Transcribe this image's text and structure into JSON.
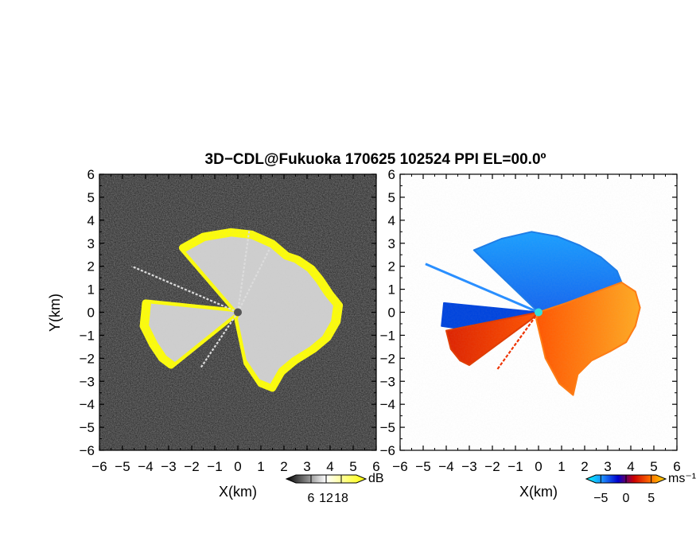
{
  "chart_data": [
    {
      "type": "heatmap",
      "panel": "left",
      "title": "3D−CDL@Fukuoka 170625 102524 PPI EL=00.0º",
      "xlabel": "X(km)",
      "ylabel": "Y(km)",
      "xlim": [
        -6,
        6
      ],
      "ylim": [
        -6,
        6
      ],
      "xticks": [
        "−6",
        "−5",
        "−4",
        "−3",
        "−2",
        "−1",
        "0",
        "1",
        "2",
        "3",
        "4",
        "5",
        "6"
      ],
      "yticks": [
        "6",
        "5",
        "4",
        "3",
        "2",
        "1",
        "0",
        "−1",
        "−2",
        "−3",
        "−4",
        "−5",
        "−6"
      ],
      "grid": false,
      "colorbar": {
        "label": "dB",
        "ticks": [
          "6",
          "12",
          "18"
        ],
        "values": [
          6,
          12,
          18
        ],
        "range": [
          0,
          24
        ],
        "colors": [
          "#000000",
          "#ffffff",
          "#ffff00"
        ]
      },
      "background_color": "#2e2e2e",
      "fill_colors": {
        "echo": "#cfcfcf",
        "edge": "#ffff00",
        "center": "#555555"
      },
      "echo_region": {
        "description_units": "km",
        "center": [
          0,
          0
        ],
        "sector_outline": [
          [
            0.1,
            0.0
          ],
          [
            0.6,
            2.5
          ],
          [
            1.0,
            2.7
          ],
          [
            1.4,
            2.6
          ],
          [
            2.0,
            2.5
          ],
          [
            2.6,
            2.3
          ],
          [
            3.2,
            1.9
          ],
          [
            3.6,
            1.4
          ],
          [
            4.0,
            0.8
          ],
          [
            4.4,
            0.3
          ],
          [
            4.3,
            -0.4
          ],
          [
            3.9,
            -1.1
          ],
          [
            3.3,
            -1.6
          ],
          [
            2.5,
            -2.1
          ],
          [
            1.9,
            -2.6
          ],
          [
            1.5,
            -3.3
          ],
          [
            1.0,
            -3.1
          ],
          [
            0.4,
            -2.2
          ],
          [
            0.0,
            -0.3
          ]
        ],
        "north_fan": [
          [
            0.0,
            0.0
          ],
          [
            -2.4,
            2.8
          ],
          [
            -1.5,
            3.3
          ],
          [
            -0.3,
            3.5
          ],
          [
            0.6,
            3.4
          ],
          [
            1.5,
            3.0
          ],
          [
            2.2,
            2.4
          ],
          [
            0.5,
            0.2
          ]
        ],
        "west_sector": [
          [
            0.0,
            0.0
          ],
          [
            -4.0,
            0.4
          ],
          [
            -4.1,
            -0.6
          ],
          [
            -3.7,
            -1.4
          ],
          [
            -3.3,
            -2.0
          ],
          [
            -2.9,
            -2.3
          ],
          [
            -0.3,
            -0.2
          ]
        ],
        "rays": [
          [
            -4.6,
            2.0
          ],
          [
            -1.6,
            -2.4
          ],
          [
            1.4,
            2.8
          ],
          [
            0.5,
            3.6
          ]
        ]
      }
    },
    {
      "type": "heatmap",
      "panel": "right",
      "xlabel": "X(km)",
      "xlim": [
        -6,
        6
      ],
      "ylim": [
        -6,
        6
      ],
      "xticks": [
        "−6",
        "−5",
        "−4",
        "−3",
        "−2",
        "−1",
        "0",
        "1",
        "2",
        "3",
        "4",
        "5",
        "6"
      ],
      "yticks": [
        "6",
        "5",
        "4",
        "3",
        "2",
        "1",
        "0",
        "−1",
        "−2",
        "−3",
        "−4",
        "−5",
        "−6"
      ],
      "grid": false,
      "colorbar": {
        "label": "ms⁻¹",
        "ticks": [
          "−5",
          "0",
          "5"
        ],
        "values": [
          -5,
          0,
          5
        ],
        "range": [
          -6,
          6
        ],
        "colors": [
          "#00ffff",
          "#1e90ff",
          "#0000cd",
          "#cc0000",
          "#ff6a00",
          "#ffdd00"
        ]
      },
      "background_color": "#ffffff",
      "fill_colors": {
        "approaching_far": "#1a9fff",
        "approaching_near": "#0044dd",
        "receding_near": "#ff5500",
        "receding_far": "#ffaa22",
        "center": "#33dddd"
      },
      "velocity_regions": {
        "description_units": "km",
        "north_negative": [
          [
            0.0,
            0.0
          ],
          [
            -2.8,
            2.7
          ],
          [
            -1.6,
            3.2
          ],
          [
            -0.3,
            3.5
          ],
          [
            0.8,
            3.3
          ],
          [
            1.8,
            2.9
          ],
          [
            2.7,
            2.4
          ],
          [
            3.4,
            1.8
          ],
          [
            3.6,
            1.3
          ],
          [
            1.2,
            0.4
          ]
        ],
        "east_positive": [
          [
            0.0,
            0.0
          ],
          [
            1.2,
            0.4
          ],
          [
            3.6,
            1.3
          ],
          [
            4.2,
            0.9
          ],
          [
            4.4,
            0.2
          ],
          [
            4.2,
            -0.6
          ],
          [
            3.8,
            -1.3
          ],
          [
            3.1,
            -1.7
          ],
          [
            2.3,
            -2.1
          ],
          [
            1.7,
            -2.7
          ],
          [
            1.5,
            -3.6
          ],
          [
            0.9,
            -3.1
          ],
          [
            0.3,
            -2.0
          ],
          [
            -0.1,
            -0.3
          ]
        ],
        "west_negative": [
          [
            0.0,
            0.0
          ],
          [
            -4.1,
            0.4
          ],
          [
            -4.2,
            -0.6
          ],
          [
            -3.5,
            -0.7
          ],
          [
            -0.3,
            -0.1
          ]
        ],
        "west_positive": [
          [
            0.0,
            0.0
          ],
          [
            -3.5,
            -0.7
          ],
          [
            -4.0,
            -0.8
          ],
          [
            -3.8,
            -1.6
          ],
          [
            -3.4,
            -2.1
          ],
          [
            -3.0,
            -2.3
          ],
          [
            -0.3,
            -0.3
          ]
        ],
        "rays": [
          [
            -4.9,
            2.1
          ],
          [
            -1.8,
            -2.5
          ]
        ]
      }
    }
  ]
}
